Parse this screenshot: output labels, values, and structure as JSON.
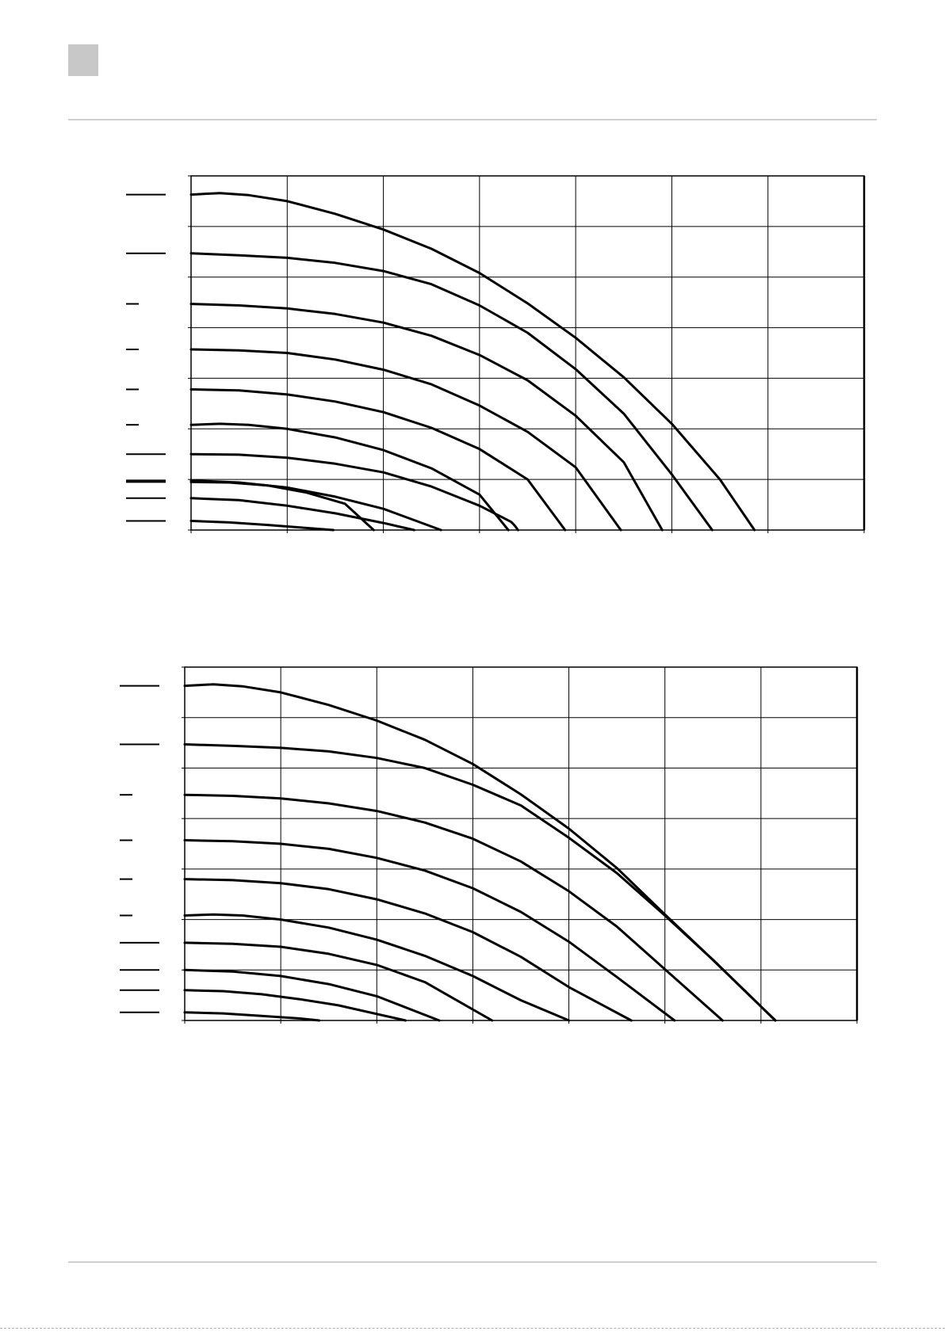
{
  "chart_data": [
    {
      "type": "line",
      "title": "",
      "xlabel": "",
      "ylabel": "",
      "xlim": [
        0,
        7
      ],
      "ylim": [
        0,
        7
      ],
      "x_gridlines": 7,
      "y_gridlines": 7,
      "grid": true,
      "legend": "none",
      "series": [
        {
          "x": [
            0,
            0.3,
            0.6,
            1,
            1.5,
            2,
            2.5,
            3,
            3.5,
            4,
            4.5,
            5,
            5.5,
            5.86
          ],
          "y": [
            6.63,
            6.66,
            6.62,
            6.5,
            6.25,
            5.94,
            5.56,
            5.08,
            4.48,
            3.8,
            3.02,
            2.1,
            1.0,
            0
          ]
        },
        {
          "x": [
            0,
            0.5,
            1,
            1.5,
            2,
            2.5,
            3,
            3.5,
            4,
            4.5,
            5,
            5.42
          ],
          "y": [
            5.47,
            5.43,
            5.38,
            5.28,
            5.12,
            4.86,
            4.44,
            3.9,
            3.18,
            2.3,
            1.1,
            0
          ]
        },
        {
          "x": [
            0,
            0.5,
            1,
            1.5,
            2,
            2.5,
            3,
            3.5,
            4,
            4.5,
            4.9
          ],
          "y": [
            4.47,
            4.44,
            4.38,
            4.27,
            4.1,
            3.84,
            3.46,
            2.96,
            2.26,
            1.34,
            0
          ]
        },
        {
          "x": [
            0,
            0.5,
            1,
            1.5,
            2,
            2.5,
            3,
            3.5,
            4,
            4.47
          ],
          "y": [
            3.57,
            3.55,
            3.5,
            3.37,
            3.17,
            2.88,
            2.46,
            1.94,
            1.24,
            0
          ]
        },
        {
          "x": [
            0,
            0.5,
            1,
            1.5,
            2,
            2.5,
            3,
            3.5,
            3.89
          ],
          "y": [
            2.78,
            2.76,
            2.68,
            2.54,
            2.33,
            2.02,
            1.6,
            1.0,
            0
          ]
        },
        {
          "x": [
            0,
            0.3,
            0.6,
            1,
            1.5,
            2,
            2.5,
            3,
            3.3
          ],
          "y": [
            2.08,
            2.1,
            2.08,
            2.0,
            1.83,
            1.58,
            1.22,
            0.7,
            0
          ]
        },
        {
          "x": [
            0,
            0.5,
            1,
            1.5,
            2,
            2.5,
            3,
            3.33,
            3.37,
            3.4
          ],
          "y": [
            1.5,
            1.49,
            1.43,
            1.31,
            1.14,
            0.86,
            0.48,
            0.16,
            0.08,
            0
          ]
        },
        {
          "x": [
            0,
            0.5,
            1,
            1.5,
            2,
            2.6
          ],
          "y": [
            0.98,
            0.94,
            0.84,
            0.66,
            0.42,
            0
          ]
        },
        {
          "x": [
            0,
            0.4,
            0.8,
            1.2,
            1.6,
            1.9
          ],
          "y": [
            0.95,
            0.94,
            0.88,
            0.74,
            0.52,
            0
          ]
        },
        {
          "x": [
            0,
            0.5,
            1,
            1.5,
            2,
            2.32
          ],
          "y": [
            0.63,
            0.59,
            0.48,
            0.33,
            0.14,
            0
          ]
        },
        {
          "x": [
            0,
            0.4,
            0.8,
            1.2,
            1.48
          ],
          "y": [
            0.18,
            0.15,
            0.1,
            0.04,
            0
          ]
        }
      ]
    },
    {
      "type": "line",
      "title": "",
      "xlabel": "",
      "ylabel": "",
      "xlim": [
        0,
        7
      ],
      "ylim": [
        0,
        7
      ],
      "x_gridlines": 7,
      "y_gridlines": 7,
      "grid": true,
      "legend": "none",
      "series": [
        {
          "x": [
            0,
            0.3,
            0.6,
            1,
            1.5,
            2,
            2.5,
            3,
            3.5,
            4,
            4.5,
            5,
            5.5,
            6.15
          ],
          "y": [
            6.63,
            6.66,
            6.62,
            6.5,
            6.25,
            5.94,
            5.56,
            5.08,
            4.48,
            3.8,
            3.02,
            2.1,
            1.2,
            0
          ]
        },
        {
          "x": [
            0,
            0.5,
            1,
            1.5,
            2,
            2.5,
            3,
            3.5,
            4,
            4.5,
            5,
            5.5,
            6.15
          ],
          "y": [
            5.47,
            5.44,
            5.4,
            5.33,
            5.2,
            5.0,
            4.67,
            4.26,
            3.62,
            2.92,
            2.08,
            1.2,
            0
          ]
        },
        {
          "x": [
            0,
            0.5,
            1,
            1.5,
            2,
            2.5,
            3,
            3.5,
            4,
            4.5,
            5.6
          ],
          "y": [
            4.47,
            4.45,
            4.4,
            4.3,
            4.15,
            3.92,
            3.6,
            3.15,
            2.56,
            1.86,
            0
          ]
        },
        {
          "x": [
            0,
            0.5,
            1,
            1.5,
            2,
            2.5,
            3,
            3.5,
            4,
            4.5,
            5.1
          ],
          "y": [
            3.57,
            3.55,
            3.5,
            3.4,
            3.22,
            2.97,
            2.62,
            2.15,
            1.56,
            0.86,
            0
          ]
        },
        {
          "x": [
            0,
            0.5,
            1,
            1.5,
            2,
            2.5,
            3,
            3.5,
            4,
            4.65
          ],
          "y": [
            2.8,
            2.78,
            2.72,
            2.6,
            2.4,
            2.12,
            1.75,
            1.26,
            0.66,
            0
          ]
        },
        {
          "x": [
            0,
            0.3,
            0.6,
            1,
            1.5,
            2,
            2.5,
            3,
            3.5,
            4.0
          ],
          "y": [
            2.08,
            2.1,
            2.08,
            2.0,
            1.84,
            1.6,
            1.28,
            0.88,
            0.4,
            0
          ]
        },
        {
          "x": [
            0,
            0.5,
            1,
            1.5,
            2,
            2.5,
            3.2
          ],
          "y": [
            1.54,
            1.52,
            1.46,
            1.32,
            1.1,
            0.76,
            0
          ]
        },
        {
          "x": [
            0,
            0.5,
            1,
            1.5,
            2,
            2.65
          ],
          "y": [
            1.0,
            0.97,
            0.88,
            0.72,
            0.48,
            0
          ]
        },
        {
          "x": [
            0,
            0.4,
            0.8,
            1.2,
            1.6,
            2.3
          ],
          "y": [
            0.6,
            0.58,
            0.52,
            0.42,
            0.3,
            0
          ]
        },
        {
          "x": [
            0,
            0.4,
            0.8,
            1.2,
            1.4
          ],
          "y": [
            0.16,
            0.14,
            0.09,
            0.04,
            0
          ]
        }
      ]
    }
  ]
}
